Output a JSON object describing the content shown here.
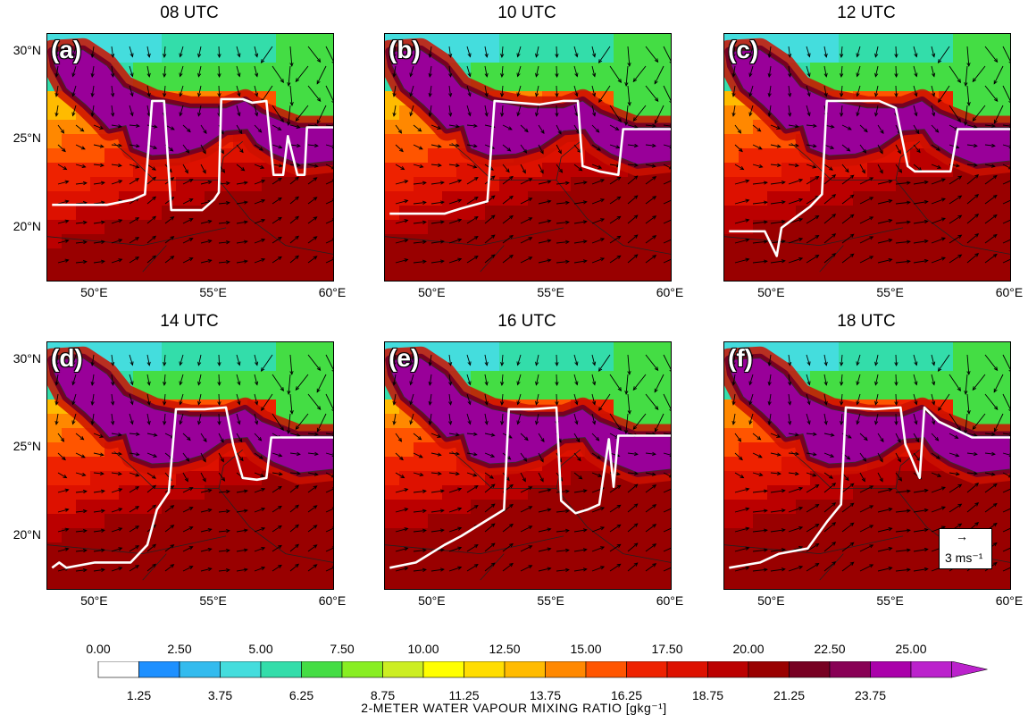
{
  "figure": {
    "panels": [
      {
        "title": "08 UTC",
        "label": "(a)"
      },
      {
        "title": "10 UTC",
        "label": "(b)"
      },
      {
        "title": "12 UTC",
        "label": "(c)"
      },
      {
        "title": "14 UTC",
        "label": "(d)"
      },
      {
        "title": "16 UTC",
        "label": "(e)"
      },
      {
        "title": "18 UTC",
        "label": "(f)"
      }
    ],
    "lat_ticks": [
      "30°N",
      "25°N",
      "20°N"
    ],
    "lon_ticks": [
      "50°E",
      "55°E",
      "60°E"
    ],
    "reference_vector": {
      "label": "3 ms⁻¹",
      "arrow_symbol": "→"
    },
    "colorbar": {
      "title": "2-METER WATER VAPOUR MIXING RATIO [gkg⁻¹]",
      "top_labels": [
        "0.00",
        "2.50",
        "5.00",
        "7.50",
        "10.00",
        "12.50",
        "15.00",
        "17.50",
        "20.00",
        "22.50",
        "25.00"
      ],
      "bottom_labels": [
        "1.25",
        "3.75",
        "6.25",
        "8.75",
        "11.25",
        "13.75",
        "16.25",
        "18.75",
        "21.25",
        "23.75"
      ],
      "colors": [
        "#ffffff",
        "#1e90ff",
        "#33bbee",
        "#44dddd",
        "#33ddaa",
        "#44dd44",
        "#88ee22",
        "#ccee22",
        "#ffff00",
        "#ffdd00",
        "#ffbb00",
        "#ff8800",
        "#ff5500",
        "#ee2200",
        "#dd1100",
        "#bb0000",
        "#990000",
        "#770022",
        "#880055",
        "#aa00aa",
        "#bb22cc"
      ]
    }
  }
}
